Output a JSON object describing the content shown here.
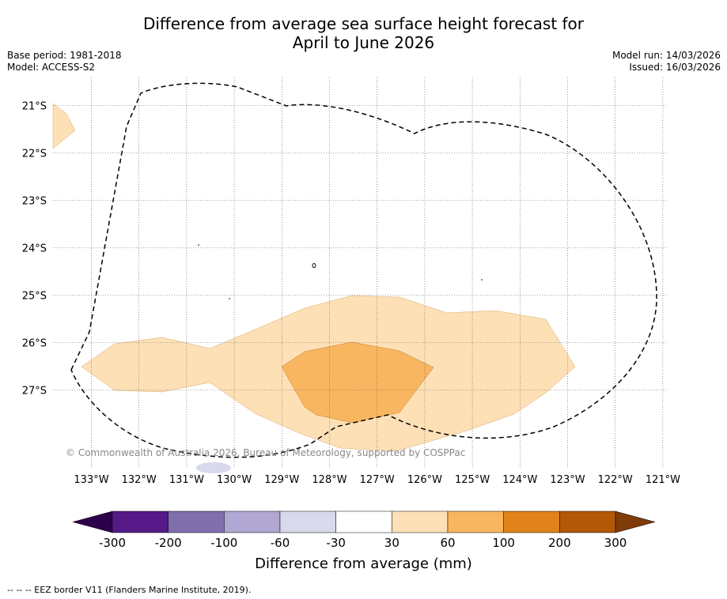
{
  "title": {
    "line1": "Difference from average sea surface height forecast for",
    "line2": "April to June 2026"
  },
  "meta": {
    "base_period": "Base period: 1981-2018",
    "model": "Model: ACCESS-S2",
    "model_run": "Model run: 14/03/2026",
    "issued": "Issued: 16/03/2026"
  },
  "map": {
    "longitude_labels": [
      "133°W",
      "132°W",
      "131°W",
      "130°W",
      "129°W",
      "128°W",
      "127°W",
      "126°W",
      "125°W",
      "124°W",
      "123°W",
      "122°W",
      "121°W"
    ],
    "latitude_labels": [
      "21°S",
      "22°S",
      "23°S",
      "24°S",
      "25°S",
      "26°S",
      "27°S"
    ],
    "copyright": "© Commonwealth of Australia 2026, Bureau of Meteorology, supported by COSPPac"
  },
  "colorbar": {
    "tick_labels": [
      "-300",
      "-200",
      "-100",
      "-60",
      "-30",
      "30",
      "60",
      "100",
      "200",
      "300"
    ],
    "colors": [
      "#551a87",
      "#7f6faa",
      "#b0a8d2",
      "#d9d9ec",
      "#ffffff",
      "#fde0b6",
      "#f9b660",
      "#e1831b",
      "#b35807"
    ],
    "low_extend_color": "#2d004b",
    "high_extend_color": "#7f3b08",
    "label": "Difference from average (mm)"
  },
  "footer": "--  --  -- EEZ border V11 (Flanders Marine Institute, 2019)."
}
